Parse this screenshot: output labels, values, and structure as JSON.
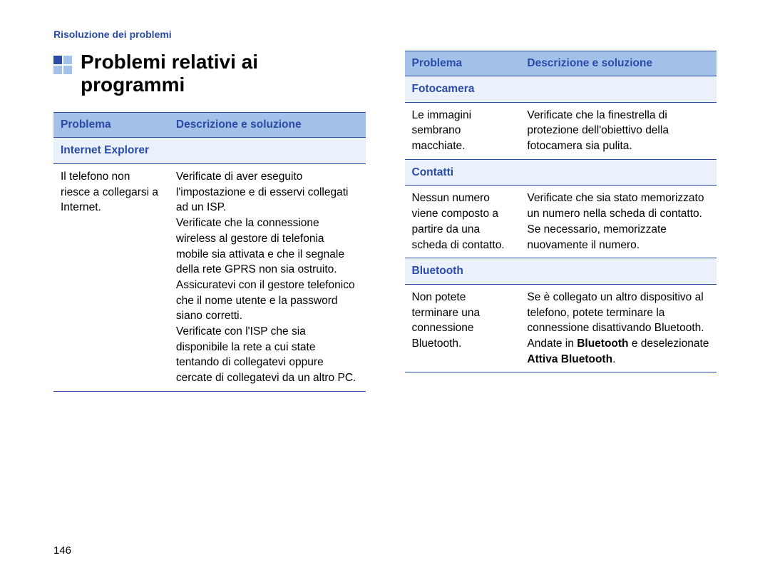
{
  "breadcrumb": "Risoluzione dei problemi",
  "section_title": "Problemi relativi ai programmi",
  "page_number": "146",
  "colors": {
    "accent": "#2a4ba8",
    "header_bg": "#a3c1e8",
    "category_bg": "#eaf1fb",
    "text": "#000000",
    "background": "#ffffff"
  },
  "left_table": {
    "headers": {
      "problem": "Problema",
      "description": "Descrizione e soluzione"
    },
    "sections": [
      {
        "category": "Internet Explorer",
        "rows": [
          {
            "problem": "Il telefono non riesce a collegarsi a Internet.",
            "description": "Verificate di aver eseguito l'impostazione e di esservi collegati ad un ISP.\nVerificate che la connessione wireless al gestore di telefonia mobile sia attivata e che il segnale della rete GPRS non sia ostruito.\nAssicuratevi con il gestore telefonico che il nome utente e la password siano corretti.\nVerificate con l'ISP che sia disponibile la rete a cui state tentando di collegatevi oppure cercate di collegatevi da un altro PC."
          }
        ]
      }
    ]
  },
  "right_table": {
    "headers": {
      "problem": "Problema",
      "description": "Descrizione e soluzione"
    },
    "sections": [
      {
        "category": "Fotocamera",
        "rows": [
          {
            "problem": "Le immagini sembrano macchiate.",
            "description": "Verificate che la finestrella di protezione dell'obiettivo della fotocamera sia pulita."
          }
        ]
      },
      {
        "category": "Contatti",
        "rows": [
          {
            "problem": "Nessun numero viene composto a partire da una scheda di contatto.",
            "description": "Verificate che sia stato memorizzato un numero nella scheda di contatto. Se necessario, memorizzate nuovamente il numero."
          }
        ]
      },
      {
        "category": "Bluetooth",
        "rows": [
          {
            "problem": "Non potete terminare una connessione Bluetooth.",
            "description_parts": [
              {
                "text": "Se è collegato un altro dispositivo al telefono, potete terminare la connessione disattivando Bluetooth. Andate in "
              },
              {
                "text": "Bluetooth",
                "bold": true
              },
              {
                "text": " e deselezionate "
              },
              {
                "text": "Attiva Bluetooth",
                "bold": true
              },
              {
                "text": "."
              }
            ]
          }
        ]
      }
    ]
  }
}
